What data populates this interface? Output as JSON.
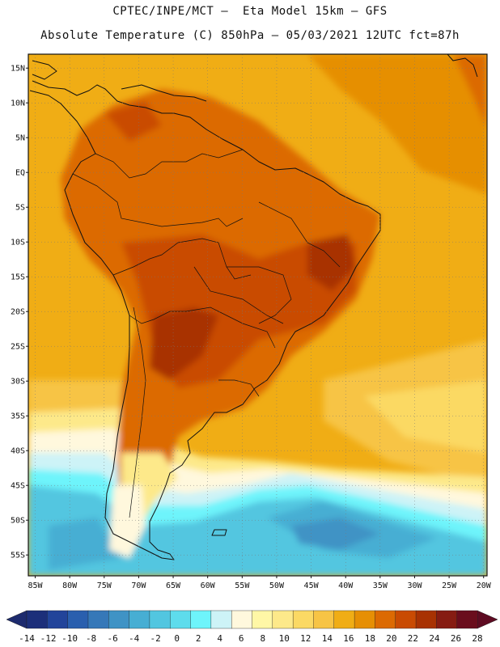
{
  "title": {
    "line1": "CPTEC/INPE/MCT –  Eta Model 15km – GFS",
    "line2": "Absolute Temperature (C) 850hPa – 05/03/2021 12UTC fct=87h"
  },
  "map": {
    "lat_labels": [
      "15N",
      "10N",
      "5N",
      "EQ",
      "5S",
      "10S",
      "15S",
      "20S",
      "25S",
      "30S",
      "35S",
      "40S",
      "45S",
      "50S",
      "55S"
    ],
    "lat_values": [
      15,
      10,
      5,
      0,
      -5,
      -10,
      -15,
      -20,
      -25,
      -30,
      -35,
      -40,
      -45,
      -50,
      -55
    ],
    "lon_labels": [
      "85W",
      "80W",
      "75W",
      "70W",
      "65W",
      "60W",
      "55W",
      "50W",
      "45W",
      "40W",
      "35W",
      "30W",
      "25W",
      "20W"
    ],
    "lon_values": [
      -85,
      -80,
      -75,
      -70,
      -65,
      -60,
      -55,
      -50,
      -45,
      -40,
      -35,
      -30,
      -25,
      -20
    ],
    "extent": {
      "lon_min": -86,
      "lon_max": -19.5,
      "lat_min": -58,
      "lat_max": 17
    }
  },
  "colorbar": {
    "ticks": [
      "-14",
      "-12",
      "-10",
      "-8",
      "-6",
      "-4",
      "-2",
      "0",
      "2",
      "4",
      "6",
      "8",
      "10",
      "12",
      "14",
      "16",
      "18",
      "20",
      "22",
      "24",
      "26",
      "28"
    ],
    "colors": [
      "#1c2f7a",
      "#22449a",
      "#2a5fae",
      "#3678b8",
      "#3f93c5",
      "#47aed3",
      "#52c6e0",
      "#5edcec",
      "#6ef4fb",
      "#cdf3f7",
      "#fff8dd",
      "#fff7a6",
      "#fde98a",
      "#fbd964",
      "#f7c445",
      "#f0ad15",
      "#e68f04",
      "#dc6a02",
      "#c94b02",
      "#a83202",
      "#861c12",
      "#6a0d1d"
    ],
    "under_color": "#1d2b6e",
    "over_color": "#5e0b22"
  },
  "palette": {
    "ocean_warm": "#f0ad15",
    "ocean_mid": "#f7c445",
    "land_hot": "#dc6a02",
    "land_very_hot": "#c94b02",
    "cold_ocean": "#47aed3",
    "cyan": "#52c6e0"
  }
}
